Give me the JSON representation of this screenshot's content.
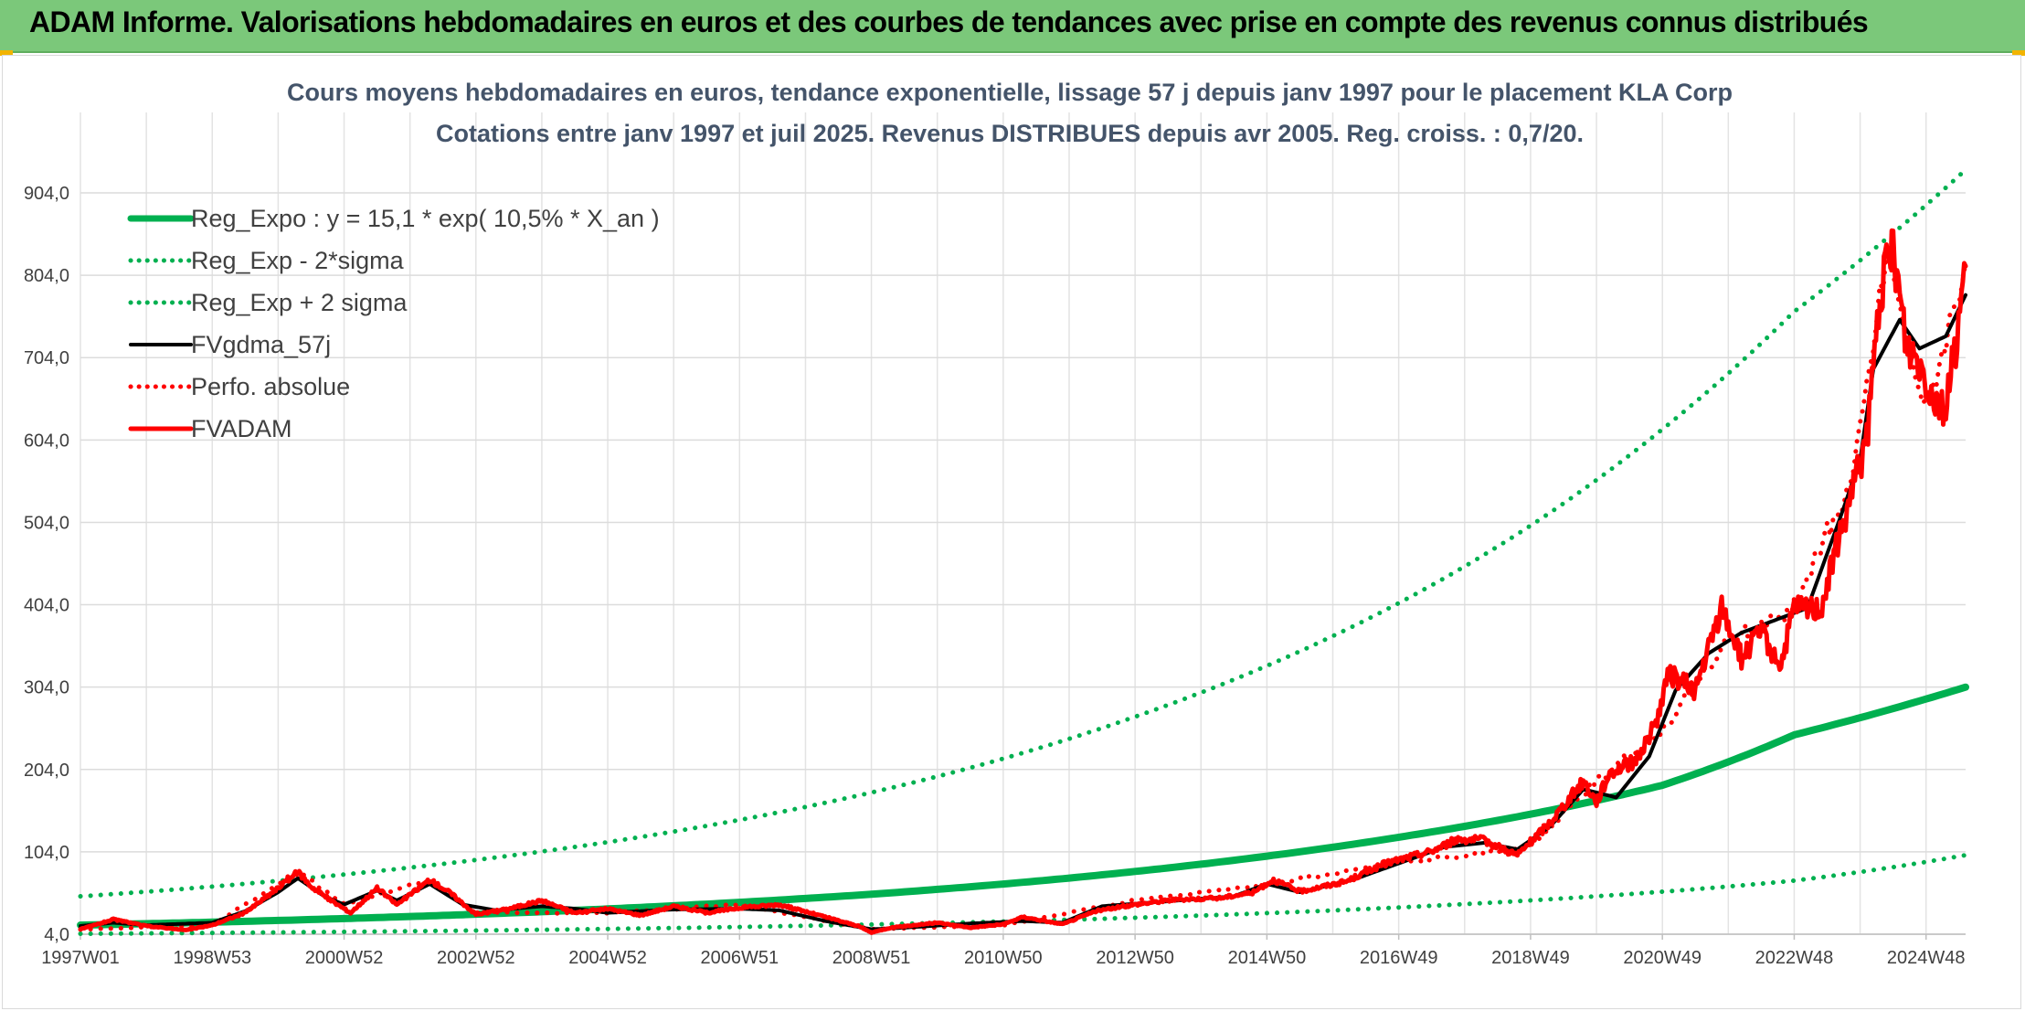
{
  "header": {
    "title": "ADAM Informe. Valorisations hebdomadaires en euros et des courbes de tendances avec prise en compte des revenus connus distribués"
  },
  "colors": {
    "header_bg": "#7bc87a",
    "regression": "#00b050",
    "moving_avg": "#000000",
    "perf_absolue": "#ff0000",
    "fvadam": "#ff0000",
    "title": "#44546a"
  },
  "chart_data": {
    "type": "line",
    "title_line1": "Cours moyens hebdomadaires en euros, tendance exponentielle, lissage 57 j depuis janv 1997 pour le placement KLA Corp",
    "title_line2": "Cotations entre janv 1997 et juil 2025. Revenus DISTRIBUES depuis avr 2005. Reg. croiss. : 0,7/20.",
    "xlabel": "",
    "ylabel": "",
    "x_tick_labels": [
      "1997W01",
      "1998W53",
      "2000W52",
      "2002W52",
      "2004W52",
      "2006W51",
      "2008W51",
      "2010W50",
      "2012W50",
      "2014W50",
      "2016W49",
      "2018W49",
      "2020W49",
      "2022W48",
      "2024W48"
    ],
    "x_tick_years": [
      1997.0,
      1999.0,
      2001.0,
      2003.0,
      2005.0,
      2007.0,
      2009.0,
      2011.0,
      2013.0,
      2015.0,
      2017.0,
      2019.0,
      2021.0,
      2023.0,
      2025.0
    ],
    "y_tick_labels": [
      "4,0",
      "104,0",
      "204,0",
      "304,0",
      "404,0",
      "504,0",
      "604,0",
      "704,0",
      "804,0",
      "904,0"
    ],
    "y_ticks": [
      4,
      104,
      204,
      304,
      404,
      504,
      604,
      704,
      804,
      904
    ],
    "ylim": [
      4,
      904
    ],
    "xlim": [
      1997.0,
      2025.6
    ],
    "grid": true,
    "legend_position": "top-left",
    "series": [
      {
        "name": "Reg_Expo : y = 15,1 * exp( 10,5% *  X_an )",
        "style": "solid-thick",
        "color": "#00b050",
        "points": [
          [
            1997.0,
            15.1
          ],
          [
            2001.0,
            23.0
          ],
          [
            2005.0,
            34.7
          ],
          [
            2009.0,
            52.6
          ],
          [
            2013.0,
            80.2
          ],
          [
            2017.0,
            121.7
          ],
          [
            2019.0,
            149.7
          ],
          [
            2021.0,
            184.8
          ],
          [
            2023.0,
            246.0
          ],
          [
            2025.6,
            304.0
          ]
        ]
      },
      {
        "name": "Reg_Exp - 2*sigma",
        "style": "dotted",
        "color": "#00b050",
        "points": [
          [
            1997.0,
            4.5
          ],
          [
            2001.0,
            6.9
          ],
          [
            2005.0,
            10.4
          ],
          [
            2009.0,
            15.8
          ],
          [
            2013.0,
            24.0
          ],
          [
            2017.0,
            36.5
          ],
          [
            2021.0,
            55.6
          ],
          [
            2023.0,
            69.0
          ],
          [
            2025.6,
            100.0
          ]
        ]
      },
      {
        "name": "Reg_Exp + 2 sigma",
        "style": "dotted",
        "color": "#00b050",
        "points": [
          [
            1997.0,
            50.0
          ],
          [
            2001.0,
            76.5
          ],
          [
            2005.0,
            115.8
          ],
          [
            2009.0,
            176.0
          ],
          [
            2013.0,
            268.0
          ],
          [
            2017.0,
            406.0
          ],
          [
            2019.0,
            500.0
          ],
          [
            2021.0,
            617.0
          ],
          [
            2023.0,
            760.0
          ],
          [
            2025.6,
            932.0
          ]
        ]
      },
      {
        "name": "FVgdma_57j",
        "style": "solid",
        "color": "#000000",
        "points": [
          [
            1997.0,
            14
          ],
          [
            1997.5,
            18
          ],
          [
            1998.0,
            15
          ],
          [
            1999.0,
            18
          ],
          [
            1999.5,
            32
          ],
          [
            2000.0,
            55
          ],
          [
            2000.3,
            72
          ],
          [
            2000.7,
            50
          ],
          [
            2001.0,
            40
          ],
          [
            2001.5,
            57
          ],
          [
            2001.8,
            45
          ],
          [
            2002.3,
            65
          ],
          [
            2002.8,
            40
          ],
          [
            2003.3,
            33
          ],
          [
            2004.0,
            38
          ],
          [
            2004.5,
            35
          ],
          [
            2005.0,
            30
          ],
          [
            2006.0,
            34
          ],
          [
            2007.0,
            35
          ],
          [
            2007.6,
            33
          ],
          [
            2008.3,
            20
          ],
          [
            2009.0,
            10
          ],
          [
            2009.5,
            12
          ],
          [
            2010.5,
            17
          ],
          [
            2011.3,
            20
          ],
          [
            2011.9,
            18
          ],
          [
            2012.5,
            38
          ],
          [
            2013.5,
            44
          ],
          [
            2014.5,
            50
          ],
          [
            2015.0,
            65
          ],
          [
            2015.5,
            55
          ],
          [
            2016.3,
            70
          ],
          [
            2017.0,
            90
          ],
          [
            2017.7,
            110
          ],
          [
            2018.3,
            115
          ],
          [
            2018.8,
            107
          ],
          [
            2019.3,
            135
          ],
          [
            2019.8,
            180
          ],
          [
            2020.3,
            170
          ],
          [
            2020.8,
            220
          ],
          [
            2021.2,
            300
          ],
          [
            2021.7,
            345
          ],
          [
            2022.2,
            370
          ],
          [
            2022.7,
            385
          ],
          [
            2023.2,
            400
          ],
          [
            2023.7,
            510
          ],
          [
            2024.0,
            580
          ],
          [
            2024.2,
            690
          ],
          [
            2024.6,
            750
          ],
          [
            2024.9,
            715
          ],
          [
            2025.3,
            730
          ],
          [
            2025.6,
            780
          ]
        ]
      },
      {
        "name": "Perfo. absolue",
        "style": "dotted",
        "color": "#ff0000",
        "points": [
          [
            1997.0,
            10
          ],
          [
            1999.0,
            15
          ],
          [
            2000.3,
            80
          ],
          [
            2001.0,
            40
          ],
          [
            2002.3,
            70
          ],
          [
            2003.0,
            30
          ],
          [
            2005.0,
            30
          ],
          [
            2007.0,
            40
          ],
          [
            2009.0,
            10
          ],
          [
            2011.0,
            15
          ],
          [
            2013.0,
            45
          ],
          [
            2015.0,
            65
          ],
          [
            2017.0,
            90
          ],
          [
            2019.0,
            110
          ],
          [
            2020.0,
            190
          ],
          [
            2021.0,
            250
          ],
          [
            2022.0,
            360
          ],
          [
            2023.0,
            400
          ],
          [
            2023.9,
            560
          ],
          [
            2024.4,
            830
          ],
          [
            2025.0,
            640
          ],
          [
            2025.6,
            820
          ]
        ]
      },
      {
        "name": "FVADAM",
        "style": "solid-thick",
        "color": "#ff0000",
        "points": [
          [
            1997.0,
            10
          ],
          [
            1997.5,
            22
          ],
          [
            1998.0,
            14
          ],
          [
            1998.6,
            9
          ],
          [
            1999.0,
            15
          ],
          [
            1999.5,
            30
          ],
          [
            2000.0,
            60
          ],
          [
            2000.3,
            80
          ],
          [
            2000.5,
            62
          ],
          [
            2000.8,
            45
          ],
          [
            2001.1,
            30
          ],
          [
            2001.5,
            60
          ],
          [
            2001.8,
            40
          ],
          [
            2002.3,
            70
          ],
          [
            2002.6,
            55
          ],
          [
            2003.0,
            28
          ],
          [
            2003.5,
            35
          ],
          [
            2004.0,
            45
          ],
          [
            2004.5,
            30
          ],
          [
            2005.0,
            35
          ],
          [
            2005.5,
            27
          ],
          [
            2006.0,
            38
          ],
          [
            2006.5,
            30
          ],
          [
            2007.0,
            36
          ],
          [
            2007.6,
            40
          ],
          [
            2008.3,
            25
          ],
          [
            2008.8,
            14
          ],
          [
            2009.0,
            6
          ],
          [
            2009.3,
            12
          ],
          [
            2010.0,
            18
          ],
          [
            2010.5,
            12
          ],
          [
            2011.0,
            16
          ],
          [
            2011.3,
            25
          ],
          [
            2011.9,
            16
          ],
          [
            2012.4,
            32
          ],
          [
            2013.0,
            40
          ],
          [
            2013.6,
            46
          ],
          [
            2014.3,
            48
          ],
          [
            2014.8,
            55
          ],
          [
            2015.1,
            70
          ],
          [
            2015.5,
            56
          ],
          [
            2016.2,
            68
          ],
          [
            2016.8,
            90
          ],
          [
            2017.5,
            105
          ],
          [
            2017.9,
            120
          ],
          [
            2018.3,
            118
          ],
          [
            2018.8,
            100
          ],
          [
            2019.3,
            140
          ],
          [
            2019.8,
            190
          ],
          [
            2020.0,
            165
          ],
          [
            2020.2,
            200
          ],
          [
            2020.6,
            215
          ],
          [
            2020.9,
            260
          ],
          [
            2021.1,
            320
          ],
          [
            2021.5,
            300
          ],
          [
            2021.9,
            400
          ],
          [
            2022.2,
            340
          ],
          [
            2022.5,
            370
          ],
          [
            2022.8,
            330
          ],
          [
            2023.0,
            400
          ],
          [
            2023.4,
            400
          ],
          [
            2023.8,
            520
          ],
          [
            2024.1,
            600
          ],
          [
            2024.3,
            780
          ],
          [
            2024.5,
            840
          ],
          [
            2024.7,
            720
          ],
          [
            2024.9,
            700
          ],
          [
            2025.1,
            660
          ],
          [
            2025.3,
            640
          ],
          [
            2025.45,
            720
          ],
          [
            2025.6,
            815
          ]
        ]
      }
    ]
  }
}
